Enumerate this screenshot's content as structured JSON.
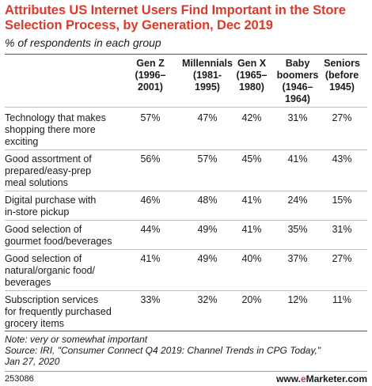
{
  "title": "Attributes US Internet Users Find Important in the Store Selection Process, by Generation, Dec 2019",
  "subtitle": "% of respondents in each group",
  "chart_data": {
    "type": "table",
    "columns": [
      {
        "line1": "Gen Z",
        "line2": "(1996–",
        "line3": "2001)",
        "line4": ""
      },
      {
        "line1": "Millennials",
        "line2": "(1981-",
        "line3": "1995)",
        "line4": ""
      },
      {
        "line1": "Gen X",
        "line2": "(1965–",
        "line3": "1980)",
        "line4": ""
      },
      {
        "line1": "Baby",
        "line2": "boomers",
        "line3": "(1946–",
        "line4": "1964)"
      },
      {
        "line1": "Seniors",
        "line2": "(before",
        "line3": "1945)",
        "line4": ""
      }
    ],
    "rows": [
      {
        "line1": "Technology that makes",
        "line2": "shopping there more",
        "line3": "exciting",
        "values": [
          "57%",
          "47%",
          "42%",
          "31%",
          "27%"
        ]
      },
      {
        "line1": "Good assortment of",
        "line2": "prepared/easy-prep",
        "line3": "meal solutions",
        "values": [
          "56%",
          "57%",
          "45%",
          "41%",
          "43%"
        ]
      },
      {
        "line1": "Digital purchase with",
        "line2": "in-store pickup",
        "line3": "",
        "values": [
          "46%",
          "48%",
          "41%",
          "24%",
          "15%"
        ]
      },
      {
        "line1": "Good selection of",
        "line2": "gourmet food/beverages",
        "line3": "",
        "values": [
          "44%",
          "49%",
          "41%",
          "35%",
          "31%"
        ]
      },
      {
        "line1": "Good selection of",
        "line2": "natural/organic food/",
        "line3": "beverages",
        "values": [
          "41%",
          "49%",
          "40%",
          "37%",
          "27%"
        ]
      },
      {
        "line1": "Subscription services",
        "line2": "for frequently purchased",
        "line3": "grocery items",
        "values": [
          "33%",
          "32%",
          "20%",
          "12%",
          "11%"
        ]
      }
    ]
  },
  "note": {
    "line1": "Note: very or somewhat important",
    "line2": "Source: IRI, \"Consumer Connect Q4 2019: Channel Trends in CPG Today,\"",
    "line3": "Jan 27, 2020"
  },
  "footer": {
    "id": "253086",
    "brand_prefix": "www.",
    "brand_accent": "e",
    "brand_suffix": "Marketer.com"
  }
}
